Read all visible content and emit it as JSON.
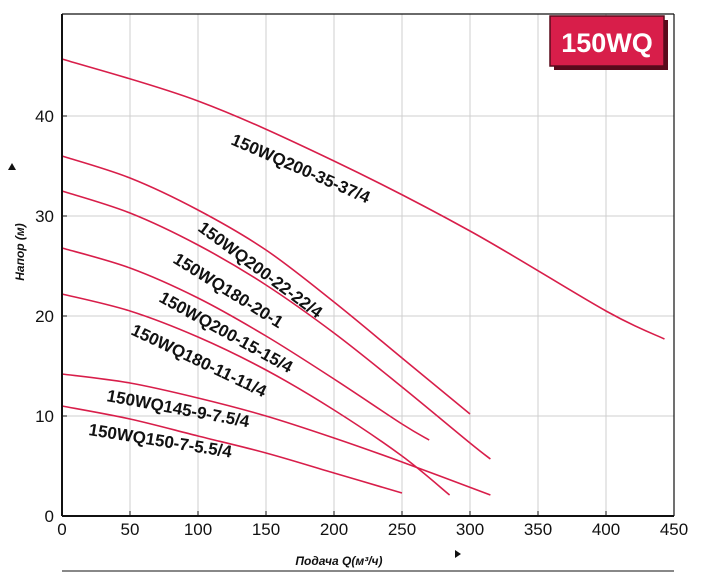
{
  "badge": {
    "text": "150WQ",
    "color": "#d81e4a",
    "border": "#5a0a1c"
  },
  "chart_data": {
    "type": "line",
    "xlabel": "Подача Q(м³/ч)",
    "ylabel": "Напор (м)",
    "xlim": [
      0,
      450
    ],
    "ylim": [
      0,
      50
    ],
    "x_ticks": [
      0,
      50,
      100,
      150,
      200,
      250,
      300,
      350,
      400,
      450
    ],
    "y_ticks": [
      0,
      10,
      20,
      30,
      40
    ],
    "grid": true,
    "curve_color": "#d81e4a",
    "series": [
      {
        "name": "150WQ200-35-37/4",
        "x": [
          0,
          100,
          200,
          300,
          400,
          443
        ],
        "y": [
          45.7,
          41.5,
          35.5,
          28.5,
          20.5,
          17.7
        ]
      },
      {
        "name": "150WQ200-22-22/4",
        "x": [
          0,
          50,
          100,
          150,
          200,
          250,
          300
        ],
        "y": [
          36.0,
          33.8,
          30.6,
          26.6,
          21.4,
          15.8,
          10.2
        ]
      },
      {
        "name": "150WQ180-20-1",
        "x": [
          0,
          50,
          100,
          150,
          200,
          250,
          300,
          315
        ],
        "y": [
          32.5,
          30.3,
          27.1,
          23.1,
          18.3,
          12.9,
          7.3,
          5.7
        ]
      },
      {
        "name": "150WQ200-15-15/4",
        "x": [
          0,
          50,
          100,
          150,
          200,
          250,
          270
        ],
        "y": [
          26.8,
          24.8,
          21.8,
          18.0,
          13.7,
          9.2,
          7.6
        ]
      },
      {
        "name": "150WQ180-11-11/4",
        "x": [
          0,
          50,
          100,
          150,
          200,
          250,
          285
        ],
        "y": [
          22.2,
          20.5,
          17.9,
          14.6,
          10.6,
          6.0,
          2.1
        ]
      },
      {
        "name": "150WQ145-9-7.5/4",
        "x": [
          0,
          50,
          100,
          150,
          200,
          250,
          315
        ],
        "y": [
          14.2,
          13.3,
          11.8,
          10.0,
          7.8,
          5.4,
          2.1
        ]
      },
      {
        "name": "150WQ150-7-5.5/4",
        "x": [
          0,
          50,
          100,
          150,
          200,
          250
        ],
        "y": [
          11.0,
          9.7,
          8.0,
          6.3,
          4.3,
          2.3
        ]
      }
    ]
  }
}
